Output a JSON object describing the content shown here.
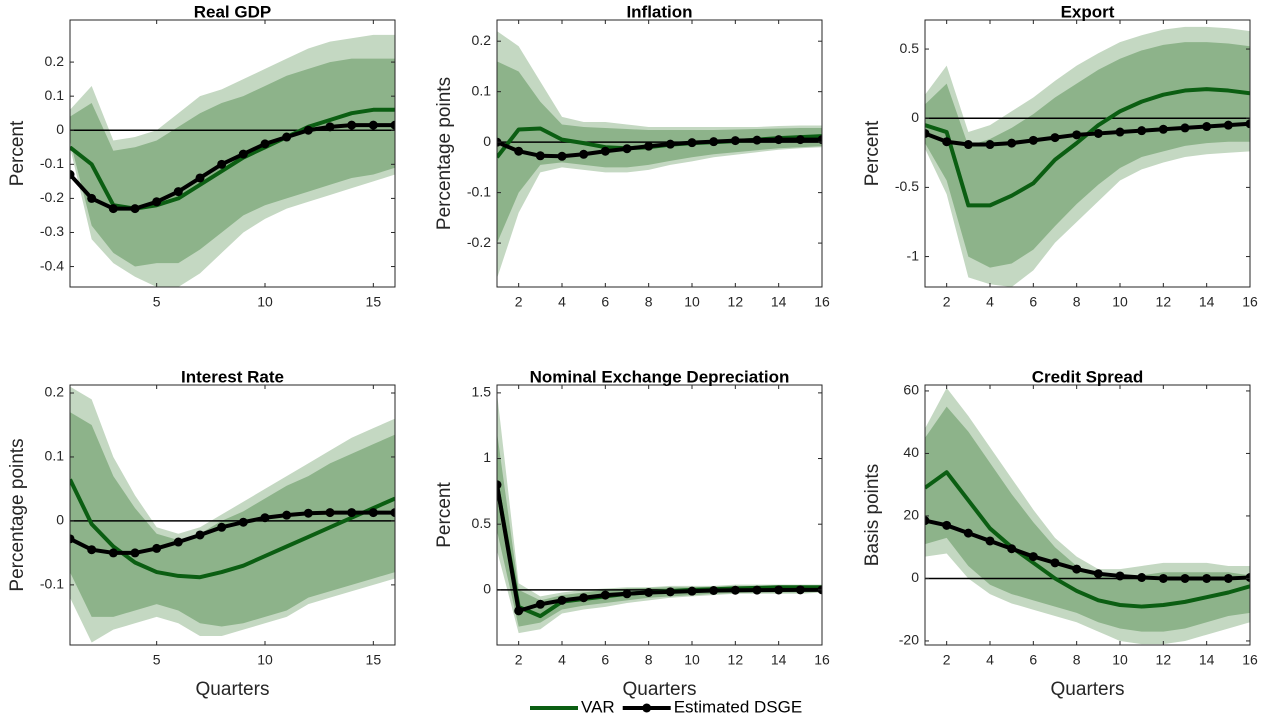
{
  "chart_data": [
    {
      "type": "line",
      "title": "Real GDP",
      "ylabel": "Percent",
      "x": [
        1,
        2,
        3,
        4,
        5,
        6,
        7,
        8,
        9,
        10,
        11,
        12,
        13,
        14,
        15,
        16
      ],
      "xlim": [
        1,
        16
      ],
      "xticks": [
        5,
        10,
        15
      ],
      "ylim": [
        -0.46,
        0.3235
      ],
      "yticks": [
        -0.4,
        -0.3,
        -0.2,
        -0.1,
        0,
        0.1,
        0.2
      ],
      "hline": 0,
      "bands": [
        {
          "color": "#c4d8c2",
          "lower": [
            -0.05,
            -0.32,
            -0.39,
            -0.43,
            -0.46,
            -0.46,
            -0.42,
            -0.36,
            -0.3,
            -0.26,
            -0.23,
            -0.21,
            -0.19,
            -0.17,
            -0.15,
            -0.13
          ],
          "upper": [
            0.06,
            0.13,
            -0.03,
            -0.02,
            0.0,
            0.05,
            0.1,
            0.12,
            0.15,
            0.18,
            0.21,
            0.24,
            0.26,
            0.27,
            0.28,
            0.28
          ]
        },
        {
          "color": "#8db38a",
          "lower": [
            -0.03,
            -0.28,
            -0.36,
            -0.4,
            -0.39,
            -0.39,
            -0.35,
            -0.3,
            -0.25,
            -0.22,
            -0.2,
            -0.18,
            -0.16,
            -0.14,
            -0.13,
            -0.11
          ],
          "upper": [
            0.04,
            0.08,
            -0.06,
            -0.05,
            -0.03,
            0.01,
            0.05,
            0.08,
            0.1,
            0.13,
            0.16,
            0.18,
            0.2,
            0.21,
            0.21,
            0.21
          ]
        }
      ],
      "series": [
        {
          "name": "VAR",
          "color": "#0b5e12",
          "values": [
            -0.05,
            -0.1,
            -0.22,
            -0.23,
            -0.22,
            -0.2,
            -0.16,
            -0.12,
            -0.08,
            -0.05,
            -0.02,
            0.01,
            0.03,
            0.05,
            0.06,
            0.06
          ]
        },
        {
          "name": "Estimated DSGE",
          "color": "#000000",
          "marker": true,
          "values": [
            -0.13,
            -0.2,
            -0.23,
            -0.23,
            -0.21,
            -0.18,
            -0.14,
            -0.1,
            -0.07,
            -0.04,
            -0.02,
            0,
            0.01,
            0.015,
            0.015,
            0.015
          ]
        }
      ]
    },
    {
      "type": "line",
      "title": "Inflation",
      "ylabel": "Percentage points",
      "x": [
        1,
        2,
        3,
        4,
        5,
        6,
        7,
        8,
        9,
        10,
        11,
        12,
        13,
        14,
        15,
        16
      ],
      "xlim": [
        1,
        16
      ],
      "xticks": [
        2,
        4,
        6,
        8,
        10,
        12,
        14,
        16
      ],
      "ylim": [
        -0.287,
        0.242
      ],
      "yticks": [
        -0.2,
        -0.1,
        0,
        0.1,
        0.2
      ],
      "hline": 0,
      "bands": [
        {
          "color": "#c4d8c2",
          "lower": [
            -0.27,
            -0.14,
            -0.06,
            -0.05,
            -0.055,
            -0.06,
            -0.06,
            -0.055,
            -0.045,
            -0.038,
            -0.03,
            -0.025,
            -0.02,
            -0.015,
            -0.012,
            -0.01
          ],
          "upper": [
            0.22,
            0.19,
            0.12,
            0.05,
            0.04,
            0.04,
            0.035,
            0.03,
            0.03,
            0.03,
            0.03,
            0.03,
            0.03,
            0.032,
            0.033,
            0.033
          ]
        },
        {
          "color": "#8db38a",
          "lower": [
            -0.2,
            -0.1,
            -0.045,
            -0.04,
            -0.045,
            -0.05,
            -0.05,
            -0.045,
            -0.037,
            -0.03,
            -0.024,
            -0.02,
            -0.016,
            -0.012,
            -0.01,
            -0.008
          ],
          "upper": [
            0.16,
            0.14,
            0.08,
            0.035,
            0.03,
            0.028,
            0.026,
            0.024,
            0.024,
            0.024,
            0.024,
            0.025,
            0.026,
            0.027,
            0.028,
            0.028
          ]
        }
      ],
      "series": [
        {
          "color": "#0b5e12",
          "values": [
            -0.03,
            0.025,
            0.027,
            0.005,
            -0.002,
            -0.01,
            -0.012,
            -0.01,
            -0.005,
            -0.002,
            0,
            0.002,
            0.005,
            0.008,
            0.01,
            0.012
          ]
        },
        {
          "color": "#000000",
          "marker": true,
          "values": [
            0,
            -0.018,
            -0.027,
            -0.028,
            -0.024,
            -0.018,
            -0.013,
            -0.008,
            -0.004,
            -0.001,
            0.001,
            0.003,
            0.004,
            0.005,
            0.005,
            0.005
          ]
        }
      ]
    },
    {
      "type": "line",
      "title": "Export",
      "ylabel": "Percent",
      "x": [
        1,
        2,
        3,
        4,
        5,
        6,
        7,
        8,
        9,
        10,
        11,
        12,
        13,
        14,
        15,
        16
      ],
      "xlim": [
        1,
        16
      ],
      "xticks": [
        2,
        4,
        6,
        8,
        10,
        12,
        14,
        16
      ],
      "ylim": [
        -1.22,
        0.71
      ],
      "yticks": [
        -1,
        -0.5,
        0,
        0.5
      ],
      "hline": 0,
      "bands": [
        {
          "color": "#c4d8c2",
          "lower": [
            -0.22,
            -0.55,
            -1.15,
            -1.2,
            -1.22,
            -1.1,
            -0.9,
            -0.75,
            -0.6,
            -0.45,
            -0.37,
            -0.32,
            -0.28,
            -0.26,
            -0.25,
            -0.24
          ],
          "upper": [
            0.17,
            0.38,
            -0.1,
            -0.05,
            0.05,
            0.15,
            0.27,
            0.38,
            0.47,
            0.55,
            0.6,
            0.64,
            0.66,
            0.66,
            0.65,
            0.63
          ]
        },
        {
          "color": "#8db38a",
          "lower": [
            -0.18,
            -0.45,
            -1.0,
            -1.08,
            -1.05,
            -0.95,
            -0.78,
            -0.62,
            -0.48,
            -0.36,
            -0.28,
            -0.24,
            -0.2,
            -0.18,
            -0.17,
            -0.17
          ],
          "upper": [
            0.1,
            0.25,
            -0.2,
            -0.15,
            -0.07,
            0.03,
            0.15,
            0.25,
            0.35,
            0.43,
            0.49,
            0.53,
            0.55,
            0.55,
            0.54,
            0.52
          ]
        }
      ],
      "series": [
        {
          "color": "#0b5e12",
          "values": [
            -0.05,
            -0.1,
            -0.63,
            -0.63,
            -0.56,
            -0.47,
            -0.3,
            -0.18,
            -0.05,
            0.05,
            0.12,
            0.17,
            0.2,
            0.21,
            0.2,
            0.18
          ]
        },
        {
          "color": "#000000",
          "marker": true,
          "values": [
            -0.11,
            -0.17,
            -0.19,
            -0.19,
            -0.18,
            -0.16,
            -0.14,
            -0.12,
            -0.11,
            -0.1,
            -0.09,
            -0.08,
            -0.07,
            -0.06,
            -0.05,
            -0.04
          ]
        }
      ]
    },
    {
      "type": "line",
      "title": "Interest Rate",
      "ylabel": "Percentage points",
      "xlabel": "Quarters",
      "x": [
        1,
        2,
        3,
        4,
        5,
        6,
        7,
        8,
        9,
        10,
        11,
        12,
        13,
        14,
        15,
        16
      ],
      "xlim": [
        1,
        16
      ],
      "xticks": [
        5,
        10,
        15
      ],
      "ylim": [
        -0.194,
        0.2125
      ],
      "yticks": [
        -0.1,
        0,
        0.1,
        0.2
      ],
      "hline": 0,
      "bands": [
        {
          "color": "#c4d8c2",
          "lower": [
            -0.12,
            -0.19,
            -0.17,
            -0.16,
            -0.15,
            -0.16,
            -0.18,
            -0.18,
            -0.17,
            -0.16,
            -0.15,
            -0.13,
            -0.12,
            -0.11,
            -0.1,
            -0.09
          ],
          "upper": [
            0.21,
            0.19,
            0.1,
            0.04,
            -0.01,
            -0.02,
            -0.01,
            0.01,
            0.03,
            0.05,
            0.07,
            0.09,
            0.11,
            0.13,
            0.145,
            0.16
          ]
        },
        {
          "color": "#8db38a",
          "lower": [
            -0.08,
            -0.15,
            -0.15,
            -0.14,
            -0.13,
            -0.14,
            -0.16,
            -0.165,
            -0.16,
            -0.15,
            -0.14,
            -0.12,
            -0.11,
            -0.1,
            -0.09,
            -0.08
          ],
          "upper": [
            0.17,
            0.15,
            0.07,
            0.02,
            -0.02,
            -0.03,
            -0.02,
            0,
            0.015,
            0.035,
            0.055,
            0.07,
            0.09,
            0.105,
            0.12,
            0.135
          ]
        }
      ],
      "series": [
        {
          "color": "#0b5e12",
          "values": [
            0.065,
            -0.005,
            -0.04,
            -0.065,
            -0.08,
            -0.086,
            -0.088,
            -0.08,
            -0.07,
            -0.055,
            -0.04,
            -0.025,
            -0.01,
            0.005,
            0.02,
            0.035
          ]
        },
        {
          "color": "#000000",
          "marker": true,
          "values": [
            -0.028,
            -0.045,
            -0.05,
            -0.05,
            -0.043,
            -0.033,
            -0.022,
            -0.01,
            -0.002,
            0.005,
            0.009,
            0.012,
            0.013,
            0.013,
            0.013,
            0.013
          ]
        }
      ]
    },
    {
      "type": "line",
      "title": "Nominal Exchange Depreciation",
      "ylabel": "Percent",
      "xlabel": "Quarters",
      "x": [
        1,
        2,
        3,
        4,
        5,
        6,
        7,
        8,
        9,
        10,
        11,
        12,
        13,
        14,
        15,
        16
      ],
      "xlim": [
        1,
        16
      ],
      "xticks": [
        2,
        4,
        6,
        8,
        10,
        12,
        14,
        16
      ],
      "ylim": [
        -0.42,
        1.56
      ],
      "yticks": [
        0,
        0.5,
        1,
        1.5
      ],
      "hline": 0,
      "bands": [
        {
          "color": "#c4d8c2",
          "lower": [
            0.3,
            -0.33,
            -0.3,
            -0.18,
            -0.15,
            -0.13,
            -0.1,
            -0.08,
            -0.06,
            -0.05,
            -0.04,
            -0.03,
            -0.03,
            -0.03,
            -0.03,
            -0.02
          ],
          "upper": [
            1.5,
            0.05,
            -0.05,
            -0.02,
            0,
            0.01,
            0.02,
            0.02,
            0.03,
            0.03,
            0.03,
            0.04,
            0.04,
            0.04,
            0.04,
            0.04
          ]
        },
        {
          "color": "#8db38a",
          "lower": [
            0.45,
            -0.28,
            -0.25,
            -0.15,
            -0.12,
            -0.1,
            -0.08,
            -0.06,
            -0.05,
            -0.04,
            -0.03,
            -0.025,
            -0.02,
            -0.02,
            -0.02,
            -0.015
          ],
          "upper": [
            1.2,
            0.0,
            -0.08,
            -0.04,
            -0.02,
            0,
            0.01,
            0.015,
            0.02,
            0.02,
            0.025,
            0.03,
            0.03,
            0.03,
            0.03,
            0.03
          ]
        }
      ],
      "series": [
        {
          "color": "#0b5e12",
          "values": [
            0.8,
            -0.13,
            -0.2,
            -0.09,
            -0.07,
            -0.05,
            -0.03,
            -0.02,
            -0.01,
            0,
            0.005,
            0.01,
            0.015,
            0.02,
            0.02,
            0.02
          ]
        },
        {
          "color": "#000000",
          "marker": true,
          "values": [
            0.8,
            -0.16,
            -0.11,
            -0.08,
            -0.06,
            -0.04,
            -0.03,
            -0.02,
            -0.015,
            -0.01,
            -0.005,
            -0.003,
            -0.002,
            -0.001,
            0,
            0
          ]
        }
      ]
    },
    {
      "type": "line",
      "title": "Credit Spread",
      "ylabel": "Basis points",
      "xlabel": "Quarters",
      "x": [
        1,
        2,
        3,
        4,
        5,
        6,
        7,
        8,
        9,
        10,
        11,
        12,
        13,
        14,
        15,
        16
      ],
      "xlim": [
        1,
        16
      ],
      "xticks": [
        2,
        4,
        6,
        8,
        10,
        12,
        14,
        16
      ],
      "ylim": [
        -21.3,
        61.9
      ],
      "yticks": [
        -20,
        0,
        20,
        40,
        60
      ],
      "hline": 0,
      "bands": [
        {
          "color": "#c4d8c2",
          "lower": [
            7,
            8,
            0,
            -5,
            -8,
            -10,
            -12,
            -14,
            -17,
            -20,
            -21,
            -21,
            -20,
            -18,
            -16,
            -14
          ],
          "upper": [
            48,
            61,
            52,
            42,
            32,
            22,
            13,
            7,
            3,
            3,
            4,
            5,
            5,
            5,
            4,
            4
          ]
        },
        {
          "color": "#8db38a",
          "lower": [
            11,
            13,
            4,
            -2,
            -5,
            -7,
            -9,
            -11,
            -14,
            -16,
            -17,
            -17,
            -16,
            -14,
            -12,
            -11
          ],
          "upper": [
            45,
            55,
            47,
            37,
            27,
            18,
            10,
            4,
            1,
            0,
            1,
            2,
            2,
            2,
            2,
            1
          ]
        }
      ],
      "series": [
        {
          "color": "#0b5e12",
          "values": [
            29,
            34,
            25,
            16,
            10,
            5,
            0,
            -4,
            -7,
            -8.5,
            -9,
            -8.5,
            -7.5,
            -6,
            -4.5,
            -2.5
          ]
        },
        {
          "color": "#000000",
          "marker": true,
          "values": [
            18.5,
            17,
            14.5,
            12,
            9.5,
            7,
            5,
            3,
            1.5,
            0.8,
            0.3,
            0,
            0,
            0,
            0,
            0.3
          ]
        }
      ]
    }
  ]
}
